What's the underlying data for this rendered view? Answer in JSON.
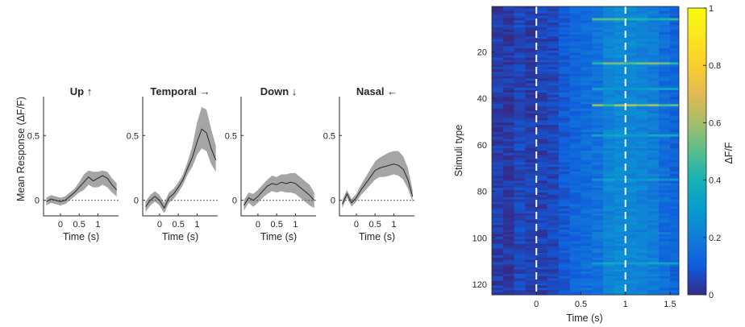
{
  "chart_data": [
    {
      "type": "line",
      "panels": [
        {
          "title": "Up ↑",
          "x": [
            -0.375,
            -0.25,
            -0.125,
            0,
            0.125,
            0.25,
            0.375,
            0.5,
            0.625,
            0.75,
            0.875,
            1,
            1.125,
            1.25,
            1.375,
            1.5
          ],
          "mean": [
            -0.01,
            0.01,
            0.0,
            -0.01,
            0.0,
            0.03,
            0.06,
            0.1,
            0.14,
            0.18,
            0.15,
            0.17,
            0.19,
            0.17,
            0.12,
            0.08
          ],
          "lower": [
            -0.04,
            -0.02,
            -0.03,
            -0.04,
            -0.03,
            0.0,
            0.03,
            0.06,
            0.08,
            0.12,
            0.1,
            0.1,
            0.12,
            0.1,
            0.06,
            0.03
          ],
          "upper": [
            0.02,
            0.04,
            0.03,
            0.02,
            0.03,
            0.06,
            0.09,
            0.14,
            0.2,
            0.23,
            0.22,
            0.22,
            0.23,
            0.22,
            0.17,
            0.13
          ]
        },
        {
          "title": "Temporal →",
          "x": [
            -0.375,
            -0.25,
            -0.125,
            0,
            0.125,
            0.25,
            0.375,
            0.5,
            0.625,
            0.75,
            0.875,
            1,
            1.125,
            1.25,
            1.375,
            1.5
          ],
          "mean": [
            -0.05,
            0.0,
            0.03,
            0.0,
            -0.06,
            0.02,
            0.05,
            0.1,
            0.16,
            0.25,
            0.33,
            0.45,
            0.55,
            0.52,
            0.4,
            0.31
          ],
          "lower": [
            -0.09,
            -0.04,
            -0.01,
            -0.04,
            -0.1,
            -0.02,
            0.01,
            0.06,
            0.12,
            0.2,
            0.26,
            0.35,
            0.4,
            0.38,
            0.28,
            0.22
          ],
          "upper": [
            -0.01,
            0.04,
            0.07,
            0.04,
            -0.02,
            0.06,
            0.09,
            0.14,
            0.2,
            0.3,
            0.42,
            0.6,
            0.72,
            0.7,
            0.55,
            0.42
          ]
        },
        {
          "title": "Down ↓",
          "x": [
            -0.375,
            -0.25,
            -0.125,
            0,
            0.125,
            0.25,
            0.375,
            0.5,
            0.625,
            0.75,
            0.875,
            1,
            1.125,
            1.25,
            1.375,
            1.5
          ],
          "mean": [
            -0.04,
            0.02,
            0.0,
            0.03,
            0.07,
            0.11,
            0.13,
            0.12,
            0.14,
            0.13,
            0.14,
            0.13,
            0.1,
            0.07,
            0.04,
            0.0
          ],
          "lower": [
            -0.08,
            -0.02,
            -0.05,
            -0.02,
            0.02,
            0.05,
            0.07,
            0.06,
            0.07,
            0.06,
            0.06,
            0.05,
            0.02,
            -0.01,
            -0.04,
            -0.06
          ],
          "upper": [
            0.0,
            0.06,
            0.05,
            0.08,
            0.12,
            0.16,
            0.19,
            0.18,
            0.2,
            0.2,
            0.21,
            0.21,
            0.18,
            0.15,
            0.12,
            0.06
          ]
        },
        {
          "title": "Nasal ←",
          "x": [
            -0.375,
            -0.25,
            -0.125,
            0,
            0.125,
            0.25,
            0.375,
            0.5,
            0.625,
            0.75,
            0.875,
            1,
            1.125,
            1.25,
            1.375,
            1.5
          ],
          "mean": [
            -0.03,
            0.05,
            -0.02,
            0.02,
            0.08,
            0.13,
            0.18,
            0.23,
            0.25,
            0.26,
            0.27,
            0.28,
            0.27,
            0.24,
            0.16,
            0.03
          ],
          "lower": [
            -0.06,
            0.02,
            -0.05,
            -0.01,
            0.04,
            0.08,
            0.12,
            0.16,
            0.18,
            0.18,
            0.19,
            0.2,
            0.19,
            0.16,
            0.09,
            -0.01
          ],
          "upper": [
            0.0,
            0.08,
            0.01,
            0.05,
            0.12,
            0.18,
            0.24,
            0.3,
            0.33,
            0.35,
            0.37,
            0.38,
            0.38,
            0.34,
            0.25,
            0.08
          ]
        }
      ],
      "ylabel": "Mean Response (ΔF/F)",
      "xlabel": "Time (s)",
      "xticks": [
        "0",
        "0.5",
        "1"
      ],
      "xtick_values": [
        0,
        0.5,
        1
      ],
      "yticks": [
        "0",
        "0.5"
      ],
      "ytick_values": [
        0,
        0.5
      ],
      "xlim": [
        -0.45,
        1.55
      ],
      "ylim": [
        -0.12,
        0.8
      ],
      "baseline": 0,
      "colors": {
        "mean": "#262626",
        "band": "#a0a0a0",
        "baseline": "#555555"
      }
    },
    {
      "type": "heatmap",
      "ylabel": "Stimuli type",
      "xlabel": "Time (s)",
      "xticks": [
        "0",
        "0.5",
        "1",
        "1.5"
      ],
      "xtick_values": [
        0,
        0.5,
        1,
        1.5
      ],
      "yticks": [
        "20",
        "40",
        "60",
        "80",
        "100",
        "120"
      ],
      "ytick_values": [
        20,
        40,
        60,
        80,
        100,
        120
      ],
      "xlim": [
        -0.5,
        1.6
      ],
      "rows": 124,
      "time_bins": [
        -0.5,
        -0.375,
        -0.25,
        -0.125,
        0,
        0.125,
        0.25,
        0.375,
        0.5,
        0.625,
        0.75,
        0.875,
        1,
        1.125,
        1.25,
        1.375,
        1.5,
        1.6
      ],
      "column_mean_response": [
        0.04,
        0.03,
        0.06,
        0.04,
        0.05,
        0.06,
        0.1,
        0.13,
        0.15,
        0.17,
        0.22,
        0.24,
        0.23,
        0.22,
        0.2,
        0.15,
        0.12
      ],
      "strong_rows": [
        {
          "row": 6,
          "value": 0.5
        },
        {
          "row": 25,
          "value": 0.55
        },
        {
          "row": 43,
          "value": 0.6
        },
        {
          "row": 36,
          "value": 0.35
        },
        {
          "row": 56,
          "value": 0.38
        },
        {
          "row": 75,
          "value": 0.35
        },
        {
          "row": 111,
          "value": 0.4
        }
      ],
      "event_lines": [
        0,
        1
      ],
      "colorbar": {
        "label": "ΔF/F",
        "ticks": [
          "0",
          "0.2",
          "0.4",
          "0.6",
          "0.8",
          "1"
        ],
        "tick_values": [
          0,
          0.2,
          0.4,
          0.6,
          0.8,
          1
        ],
        "range": [
          0,
          1
        ],
        "colormap": "parula"
      }
    }
  ]
}
